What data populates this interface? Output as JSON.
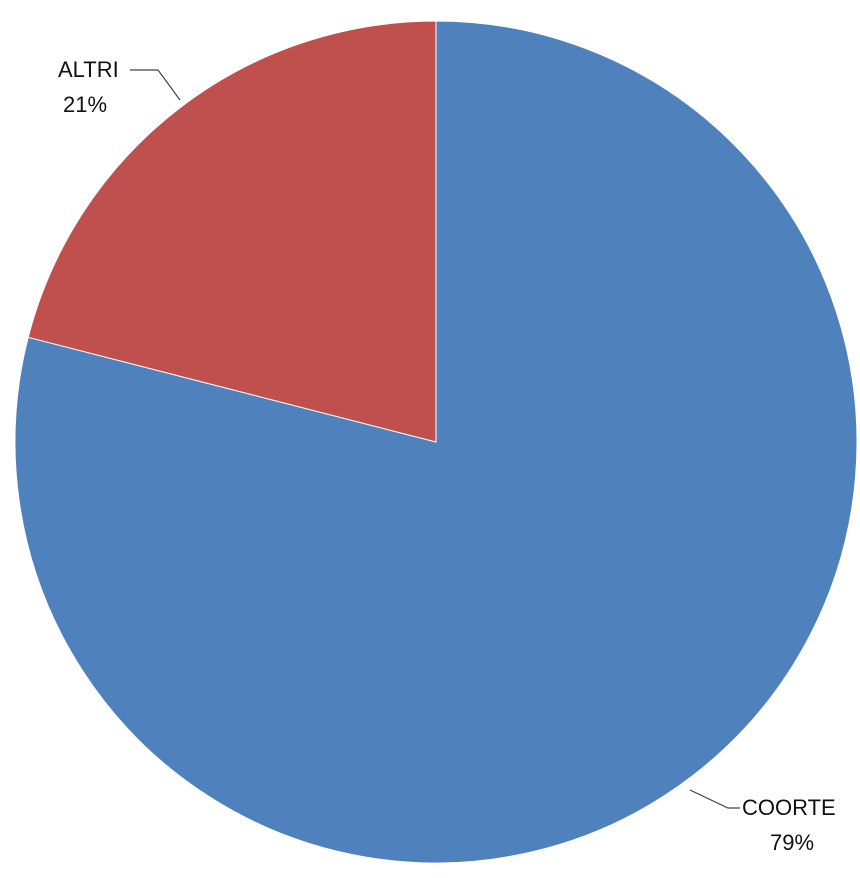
{
  "chart_data": {
    "type": "pie",
    "title": "",
    "slices": [
      {
        "label": "COORTE",
        "value": 79,
        "display": "79%",
        "color": "#4F81BD"
      },
      {
        "label": "ALTRI",
        "value": 21,
        "display": "21%",
        "color": "#C0504D"
      }
    ],
    "start": "top",
    "direction": "clockwise",
    "legend": "none",
    "labels": "outside-with-leader-lines"
  }
}
